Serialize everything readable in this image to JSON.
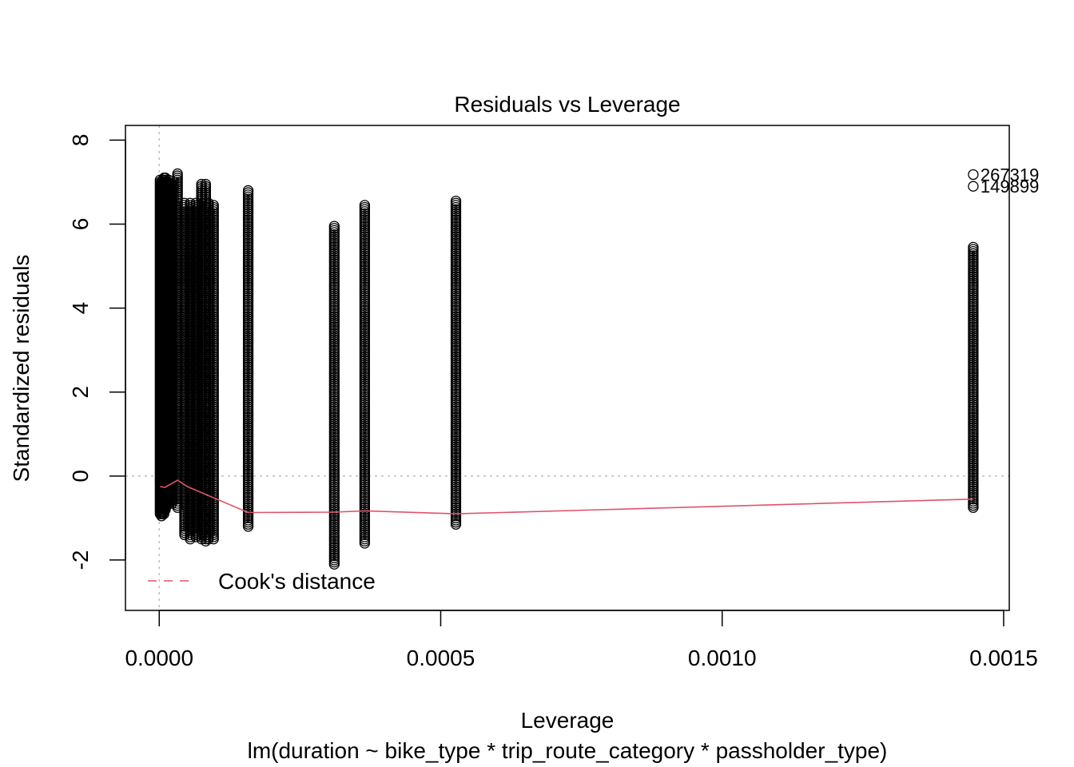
{
  "chart_data": {
    "type": "scatter",
    "title": "Residuals vs Leverage",
    "xlabel": "Leverage",
    "ylabel": "Standardized residuals",
    "subtitle": "lm(duration ~ bike_type * trip_route_category * passholder_type)",
    "xlim": [
      -6e-05,
      0.00151
    ],
    "ylim": [
      -3.2,
      8.35
    ],
    "x_ticks": [
      {
        "value": 0.0,
        "label": "0.0000"
      },
      {
        "value": 0.0005,
        "label": "0.0005"
      },
      {
        "value": 0.001,
        "label": "0.0010"
      },
      {
        "value": 0.0015,
        "label": "0.0015"
      }
    ],
    "y_ticks": [
      {
        "value": -2,
        "label": "-2"
      },
      {
        "value": 0,
        "label": "0"
      },
      {
        "value": 2,
        "label": "2"
      },
      {
        "value": 4,
        "label": "4"
      },
      {
        "value": 6,
        "label": "6"
      },
      {
        "value": 8,
        "label": "8"
      }
    ],
    "point_columns": [
      {
        "x": 1.5e-06,
        "ymin": -0.9,
        "ymax": 7.05
      },
      {
        "x": 4e-06,
        "ymin": -0.95,
        "ymax": 7.0
      },
      {
        "x": 6e-06,
        "ymin": -0.9,
        "ymax": 7.05
      },
      {
        "x": 8.5e-06,
        "ymin": -0.9,
        "ymax": 7.1
      },
      {
        "x": 1.1e-05,
        "ymin": -0.8,
        "ymax": 7.1
      },
      {
        "x": 1.4e-05,
        "ymin": -0.7,
        "ymax": 7.0
      },
      {
        "x": 1.65e-05,
        "ymin": -0.6,
        "ymax": 7.05
      },
      {
        "x": 2.25e-05,
        "ymin": -0.65,
        "ymax": 6.95
      },
      {
        "x": 3.25e-05,
        "ymin": -0.75,
        "ymax": 7.2
      },
      {
        "x": 4.5e-05,
        "ymin": -1.4,
        "ymax": 6.5
      },
      {
        "x": 5.5e-05,
        "ymin": -1.5,
        "ymax": 6.5
      },
      {
        "x": 6.5e-05,
        "ymin": -1.45,
        "ymax": 6.5
      },
      {
        "x": 7.5e-05,
        "ymin": -1.5,
        "ymax": 6.95
      },
      {
        "x": 8.25e-05,
        "ymin": -1.55,
        "ymax": 6.95
      },
      {
        "x": 8.75e-05,
        "ymin": -1.5,
        "ymax": 6.5
      },
      {
        "x": 9.65e-05,
        "ymin": -1.5,
        "ymax": 6.45
      },
      {
        "x": 0.000158,
        "ymin": -1.2,
        "ymax": 6.8
      },
      {
        "x": 0.000311,
        "ymin": -2.1,
        "ymax": 5.95
      },
      {
        "x": 0.000365,
        "ymin": -1.6,
        "ymax": 6.45
      },
      {
        "x": 0.000527,
        "ymin": -1.15,
        "ymax": 6.55
      },
      {
        "x": 0.001446,
        "ymin": -0.75,
        "ymax": 5.45
      }
    ],
    "labeled_points": [
      {
        "x": 0.001446,
        "y": 7.18,
        "label": "267319"
      },
      {
        "x": 0.001446,
        "y": 6.9,
        "label": "149899"
      }
    ],
    "smooth_line": {
      "name": "smoother",
      "color": "#DF536B",
      "x": [
        1.5e-06,
        1e-05,
        3.25e-05,
        5e-05,
        0.000158,
        0.000311,
        0.000365,
        0.000527,
        0.001446
      ],
      "y": [
        -0.25,
        -0.27,
        -0.1,
        -0.25,
        -0.87,
        -0.86,
        -0.83,
        -0.9,
        -0.55
      ]
    },
    "reference_lines": {
      "h": 0,
      "v": 0,
      "color": "#BEBEBE"
    },
    "legend": {
      "position": "bottom-left",
      "entries": [
        {
          "label": "Cook's distance",
          "color": "#DF536B",
          "style": "dashed"
        }
      ]
    }
  }
}
